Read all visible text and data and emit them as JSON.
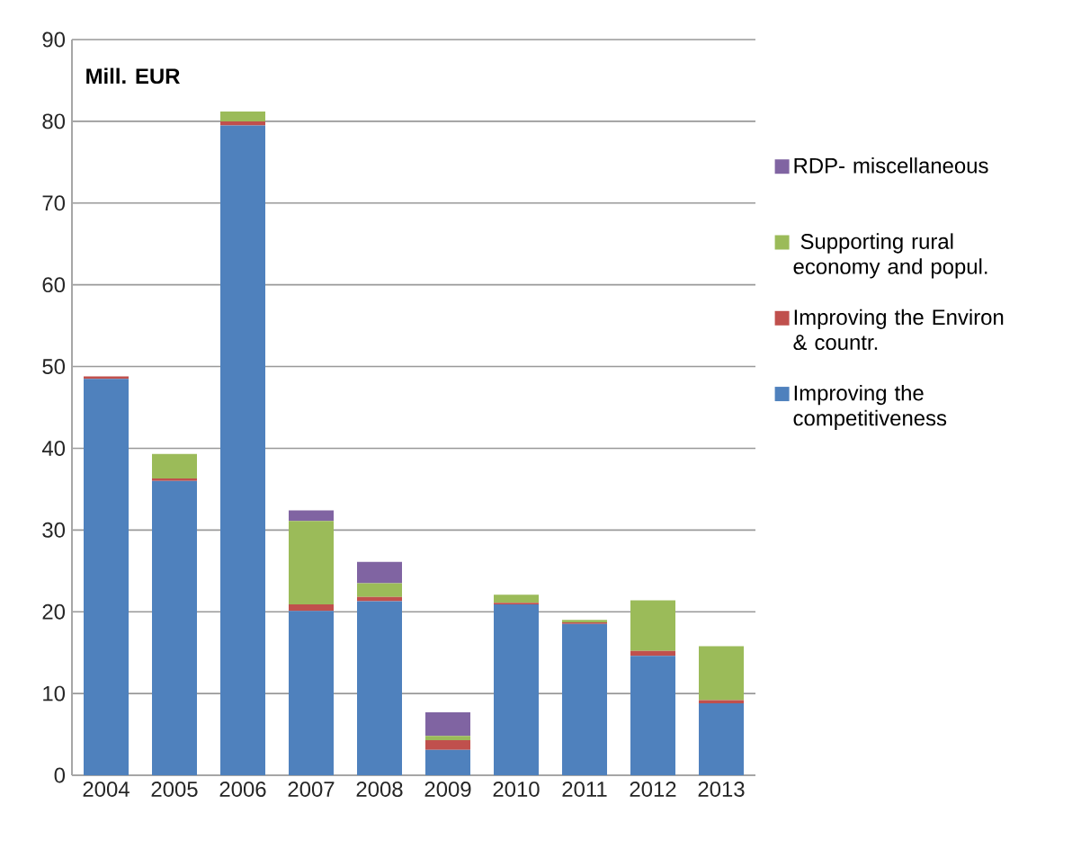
{
  "chart_data": {
    "type": "bar",
    "stacked": true,
    "ylabel": "Mill. EUR",
    "categories": [
      "2004",
      "2005",
      "2006",
      "2007",
      "2008",
      "2009",
      "2010",
      "2011",
      "2012",
      "2013"
    ],
    "series": [
      {
        "name": "Improving the competitiveness",
        "color": "#4f81bd",
        "values": [
          48.5,
          36.0,
          79.5,
          20.1,
          21.3,
          3.1,
          20.9,
          18.5,
          14.6,
          8.8
        ]
      },
      {
        "name": "Improving the Environ & countr.",
        "color": "#c0504d",
        "values": [
          0.3,
          0.3,
          0.5,
          0.8,
          0.5,
          1.2,
          0.2,
          0.2,
          0.6,
          0.4
        ]
      },
      {
        "name": " Supporting rural economy and popul.",
        "color": "#9bbb59",
        "values": [
          0,
          3.0,
          1.2,
          10.2,
          1.7,
          0.5,
          1.0,
          0.3,
          6.2,
          6.6
        ]
      },
      {
        "name": "RDP- miscellaneous",
        "color": "#8064a2",
        "values": [
          0,
          0,
          0,
          1.3,
          2.6,
          2.9,
          0,
          0,
          0,
          0
        ]
      }
    ],
    "ylim": [
      0,
      90
    ],
    "yticks": [
      0,
      10,
      20,
      30,
      40,
      50,
      60,
      70,
      80,
      90
    ],
    "grid": "y",
    "legend": "right"
  }
}
